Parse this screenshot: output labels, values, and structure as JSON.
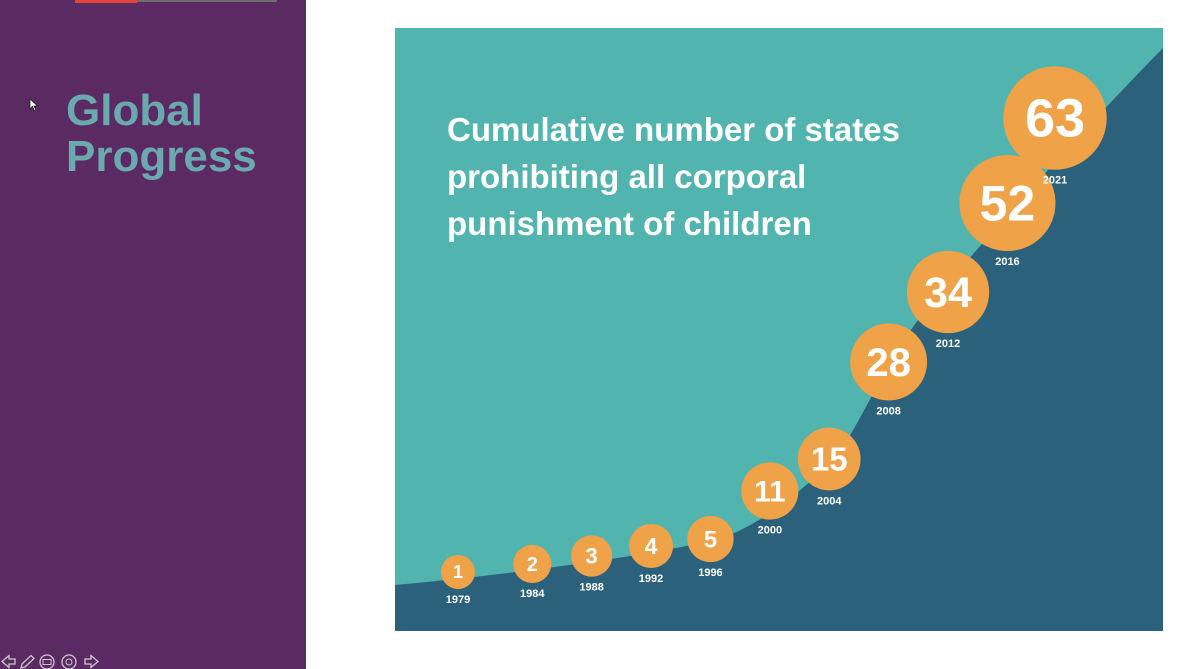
{
  "slide": {
    "title_line1": "Global",
    "title_line2": "Progress"
  },
  "toolbar": {
    "icons": [
      "previous-arrow-icon",
      "pen-icon",
      "slides-icon",
      "zoom-icon",
      "next-arrow-icon"
    ]
  },
  "colors": {
    "sidebar": "#5b2a62",
    "title_text": "#6aaaae",
    "chart_background": "#52b4ae",
    "area_fill": "#2b617b",
    "marker": "#f0a248",
    "marker_text": "#ffffff"
  },
  "chart_data": {
    "type": "area",
    "title": "Cumulative number of states prohibiting all corporal punishment of children",
    "title_lines": [
      "Cumulative number of states",
      "prohibiting all corporal",
      "punishment of children"
    ],
    "x": [
      "1979",
      "1984",
      "1988",
      "1992",
      "1996",
      "2000",
      "2004",
      "2008",
      "2012",
      "2016",
      "2021"
    ],
    "series": [
      {
        "values": [
          1,
          2,
          3,
          4,
          5,
          11,
          15,
          28,
          34,
          52,
          63
        ]
      }
    ],
    "value_labels": [
      "1",
      "2",
      "3",
      "4",
      "5",
      "11",
      "15",
      "28",
      "34",
      "52",
      "63"
    ],
    "markers": "circle",
    "grid": false,
    "legend": "none",
    "axis_labels_visible": false
  }
}
